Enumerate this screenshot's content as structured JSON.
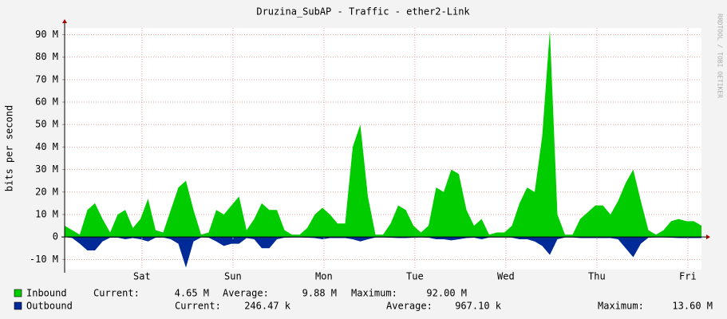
{
  "chart_data": {
    "type": "area",
    "title": "Druzina_SubAP - Traffic - ether2-Link",
    "y_label": "bits per second",
    "watermark": "RRDTOOL / TOBI OETIKER",
    "x": [
      0,
      2,
      4,
      6,
      8,
      10,
      12,
      14,
      16,
      18,
      20,
      22,
      24,
      26,
      28,
      30,
      32,
      34,
      36,
      38,
      40,
      42,
      44,
      46,
      48,
      50,
      52,
      54,
      56,
      58,
      60,
      62,
      64,
      66,
      68,
      70,
      72,
      74,
      76,
      78,
      80,
      82,
      84,
      86,
      88,
      90,
      92,
      94,
      96,
      98,
      100,
      102,
      104,
      106,
      108,
      110,
      112,
      114,
      116,
      118,
      120,
      122,
      124,
      126,
      128,
      130,
      132,
      134,
      136,
      138,
      140,
      142,
      144,
      146,
      148,
      150,
      152,
      154,
      156,
      158,
      160,
      162,
      164,
      166,
      168
    ],
    "xlim": [
      0,
      168
    ],
    "xticks": [
      {
        "value": 20.4,
        "label": "Sat"
      },
      {
        "value": 44.4,
        "label": "Sun"
      },
      {
        "value": 68.4,
        "label": "Mon"
      },
      {
        "value": 92.4,
        "label": "Tue"
      },
      {
        "value": 116.4,
        "label": "Wed"
      },
      {
        "value": 140.4,
        "label": "Thu"
      },
      {
        "value": 164.4,
        "label": "Fri"
      }
    ],
    "ylim": [
      -14.5,
      93
    ],
    "yticks": [
      {
        "value": -10,
        "label": "-10 M"
      },
      0,
      {
        "value": 10,
        "label": "10 M"
      },
      {
        "value": 20,
        "label": "20 M"
      },
      {
        "value": 30,
        "label": "30 M"
      },
      {
        "value": 40,
        "label": "40 M"
      },
      {
        "value": 50,
        "label": "50 M"
      },
      {
        "value": 60,
        "label": "60 M"
      },
      {
        "value": 70,
        "label": "70 M"
      },
      {
        "value": 80,
        "label": "80 M"
      },
      {
        "value": 90,
        "label": "90 M"
      }
    ],
    "grid": true,
    "series": [
      {
        "name": "Inbound",
        "color": "#00cc00",
        "values": [
          5,
          3,
          1,
          12,
          15,
          8,
          2,
          10,
          12,
          4,
          8,
          17,
          3,
          2,
          12,
          22,
          25,
          12,
          1,
          2,
          12,
          10,
          14,
          18,
          3,
          8,
          15,
          12,
          12,
          3,
          1,
          1,
          4,
          10,
          13,
          10,
          6,
          6,
          40,
          50,
          18,
          1,
          1,
          6,
          14,
          12,
          5,
          2,
          5,
          22,
          20,
          30,
          28,
          12,
          5,
          8,
          1,
          2,
          2,
          5,
          15,
          22,
          20,
          45,
          92,
          10,
          1,
          1,
          8,
          11,
          14,
          14,
          10,
          16,
          24,
          30,
          16,
          3,
          1,
          3,
          7,
          8,
          7,
          7,
          5
        ],
        "stats": [
          [
            "Current:",
            "4.65 M"
          ],
          [
            "Average:",
            "9.88 M"
          ],
          [
            "Maximum:",
            "92.00 M"
          ]
        ]
      },
      {
        "name": "Outbound",
        "color": "#002a97",
        "values": [
          0,
          -0.5,
          -3,
          -6,
          -6,
          -2,
          -0.3,
          -0.3,
          -1,
          -0.5,
          -1,
          -2,
          -0.3,
          -0.2,
          -1,
          -3,
          -13.6,
          -2,
          -0.2,
          -0.3,
          -2,
          -4,
          -3,
          -3,
          -0.5,
          -1,
          -5,
          -5,
          -1,
          -0.3,
          -0.2,
          -0.2,
          -0.3,
          -0.5,
          -1,
          -0.5,
          -0.5,
          -0.5,
          -1,
          -2,
          -1,
          -0.2,
          -0.2,
          -0.3,
          -0.5,
          -0.5,
          -0.3,
          -0.2,
          -0.3,
          -1,
          -1,
          -1.5,
          -1,
          -0.5,
          -0.3,
          -1,
          -0.2,
          -0.2,
          -0.2,
          -0.3,
          -1,
          -1,
          -2,
          -4,
          -8,
          -1,
          -0.2,
          -0.2,
          -0.5,
          -0.5,
          -0.5,
          -0.5,
          -0.5,
          -1,
          -5,
          -9,
          -3,
          -0.3,
          -0.2,
          -0.2,
          -0.3,
          -0.5,
          -0.5,
          -0.5,
          -0.5
        ],
        "stats": [
          [
            "Current:",
            "246.47 k"
          ],
          [
            "Average:",
            "967.10 k"
          ],
          [
            "Maximum:",
            "13.60 M"
          ]
        ]
      }
    ]
  }
}
